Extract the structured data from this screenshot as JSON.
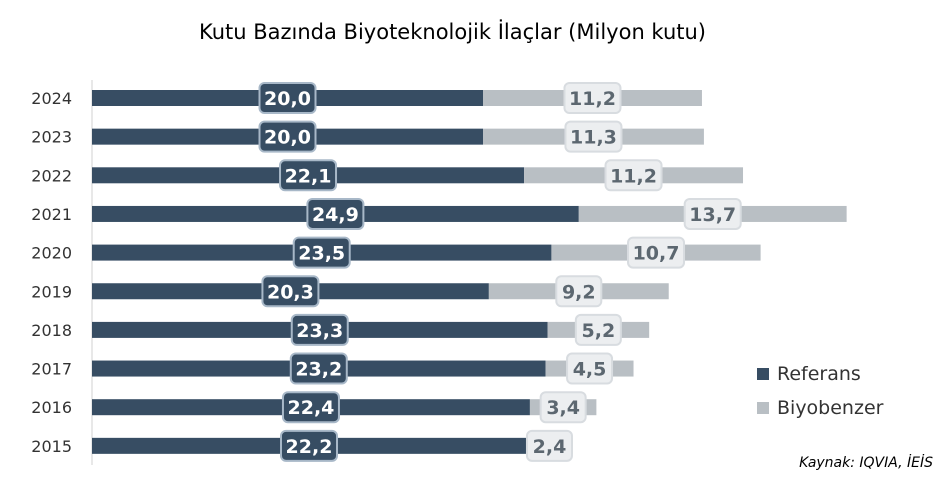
{
  "chart_data": {
    "type": "bar",
    "orientation": "horizontal",
    "stacked": true,
    "title": "Kutu Bazında Biyoteknolojik İlaçlar (Milyon kutu)",
    "categories": [
      "2024",
      "2023",
      "2022",
      "2021",
      "2020",
      "2019",
      "2018",
      "2017",
      "2016",
      "2015"
    ],
    "series": [
      {
        "name": "Referans",
        "color": "#374d63",
        "values": [
          20.0,
          20.0,
          22.1,
          24.9,
          23.5,
          20.3,
          23.3,
          23.2,
          22.4,
          22.2
        ],
        "labels": [
          "20,0",
          "20,0",
          "22,1",
          "24,9",
          "23,5",
          "20,3",
          "23,3",
          "23,2",
          "22,4",
          "22,2"
        ]
      },
      {
        "name": "Biyobenzer",
        "color": "#b9bfc4",
        "values": [
          11.2,
          11.3,
          11.2,
          13.7,
          10.7,
          9.2,
          5.2,
          4.5,
          3.4,
          2.4
        ],
        "labels": [
          "11,2",
          "11,3",
          "11,2",
          "13,7",
          "10,7",
          "9,2",
          "5,2",
          "4,5",
          "3,4",
          "2,4"
        ]
      }
    ],
    "legend": "right",
    "grid": false,
    "source": "Kaynak: IQVIA, İEİS"
  }
}
